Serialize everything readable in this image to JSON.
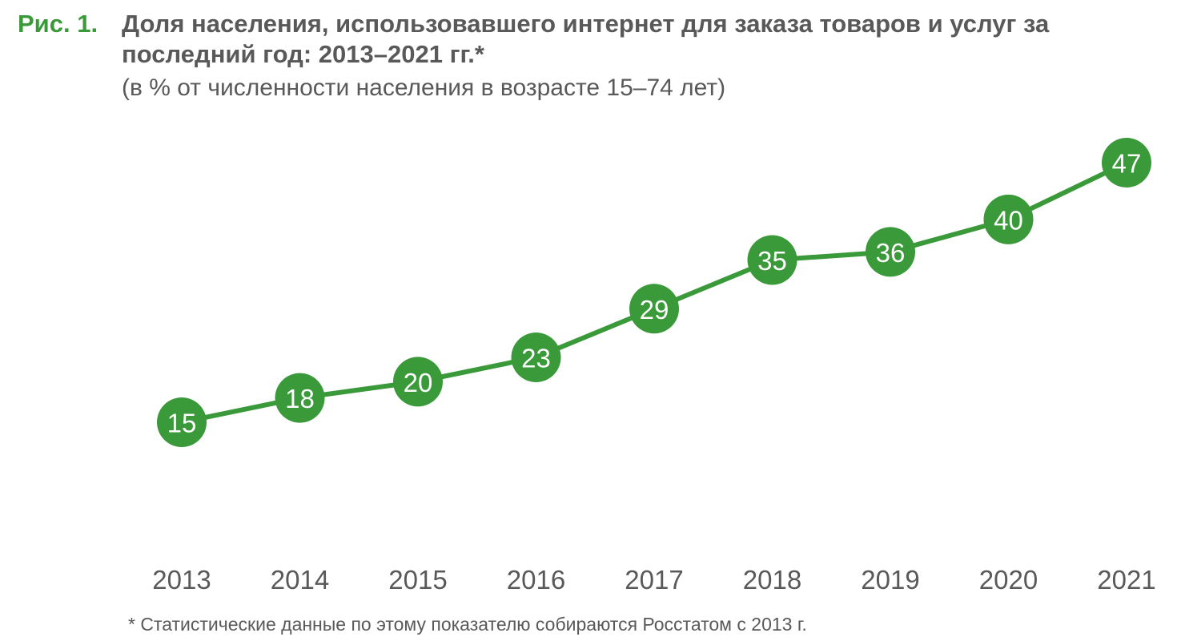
{
  "figure_label": "Рис. 1.",
  "colors": {
    "accent": "#3a9a3a",
    "text": "#595959",
    "marker_text": "#ffffff"
  },
  "chart_data": {
    "type": "line",
    "title": "Доля населения, использовавшего интернет для заказа товаров и услуг за последний год: 2013–2021 гг.*",
    "subtitle": "(в % от численности населения в возрасте 15–74 лет)",
    "xlabel": "",
    "ylabel": "",
    "categories": [
      "2013",
      "2014",
      "2015",
      "2016",
      "2017",
      "2018",
      "2019",
      "2020",
      "2021"
    ],
    "series": [
      {
        "values": [
          15,
          18,
          20,
          23,
          29,
          35,
          36,
          40,
          47
        ]
      }
    ],
    "data_labels": [
      "15",
      "18",
      "20",
      "23",
      "29",
      "35",
      "36",
      "40",
      "47"
    ],
    "grid": false,
    "legend": "none",
    "footnote": "* Статистические данные по этому показателю собираются Росстатом с 2013 г."
  }
}
